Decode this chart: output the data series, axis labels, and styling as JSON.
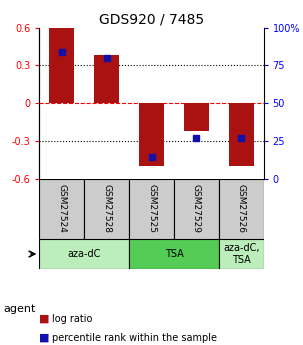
{
  "title": "GDS920 / 7485",
  "samples": [
    "GSM27524",
    "GSM27528",
    "GSM27525",
    "GSM27529",
    "GSM27526"
  ],
  "log_ratios": [
    0.6,
    0.38,
    -0.5,
    -0.22,
    -0.5
  ],
  "percentile_ranks": [
    84,
    80,
    14,
    27,
    27
  ],
  "ylim": [
    -0.6,
    0.6
  ],
  "right_ylim": [
    0,
    100
  ],
  "yticks_left": [
    -0.6,
    -0.3,
    0,
    0.3,
    0.6
  ],
  "yticks_right": [
    0,
    25,
    50,
    75,
    100
  ],
  "ytick_labels_left": [
    "-0.6",
    "-0.3",
    "0",
    "0.3",
    "0.6"
  ],
  "ytick_labels_right": [
    "0",
    "25",
    "50",
    "75",
    "100%"
  ],
  "hlines_dotted": [
    -0.3,
    0.3
  ],
  "hline_dashed": 0,
  "bar_color": "#AA1111",
  "dot_color": "#1111AA",
  "bar_width": 0.55,
  "agent_groups": [
    {
      "label": "aza-dC",
      "span": [
        0,
        2
      ],
      "color": "#BBEEBB"
    },
    {
      "label": "TSA",
      "span": [
        2,
        4
      ],
      "color": "#55CC55"
    },
    {
      "label": "aza-dC,\nTSA",
      "span": [
        4,
        5
      ],
      "color": "#BBEEBB"
    }
  ],
  "legend_bar_label": "log ratio",
  "legend_dot_label": "percentile rank within the sample",
  "agent_label": "agent",
  "fig_width": 3.03,
  "fig_height": 3.45,
  "dpi": 100
}
